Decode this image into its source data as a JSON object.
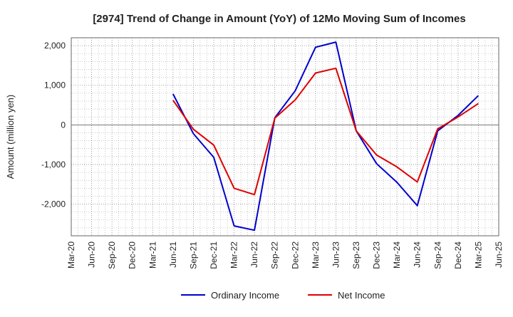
{
  "chart_data": {
    "type": "line",
    "title": "[2974]  Trend of Change in Amount (YoY) of 12Mo Moving Sum of Incomes",
    "xlabel": "",
    "ylabel": "Amount (million yen)",
    "x": [
      "Mar-20",
      "Jun-20",
      "Sep-20",
      "Dec-20",
      "Mar-21",
      "Jun-21",
      "Sep-21",
      "Dec-21",
      "Mar-22",
      "Jun-22",
      "Sep-22",
      "Dec-22",
      "Mar-23",
      "Jun-23",
      "Sep-23",
      "Dec-23",
      "Mar-24",
      "Jun-24",
      "Sep-24",
      "Dec-24",
      "Mar-25",
      "Jun-25"
    ],
    "ylim": [
      -2800,
      2200
    ],
    "yticks": [
      2000,
      1000,
      0,
      -1000,
      -2000
    ],
    "ytick_labels": [
      "2,000",
      "1,000",
      "0",
      "-1,000",
      "-2,000"
    ],
    "grid": true,
    "legend_position": "bottom",
    "series": [
      {
        "name": "Ordinary Income",
        "color": "#0000cc",
        "values": [
          null,
          null,
          null,
          null,
          null,
          780,
          -220,
          -820,
          -2550,
          -2660,
          180,
          860,
          1960,
          2090,
          -150,
          -980,
          -1450,
          -2040,
          -150,
          240,
          740,
          null
        ]
      },
      {
        "name": "Net Income",
        "color": "#dd0000",
        "values": [
          null,
          null,
          null,
          null,
          null,
          620,
          -110,
          -510,
          -1600,
          -1760,
          170,
          630,
          1310,
          1430,
          -150,
          -760,
          -1060,
          -1440,
          -100,
          200,
          540,
          null
        ]
      }
    ]
  }
}
